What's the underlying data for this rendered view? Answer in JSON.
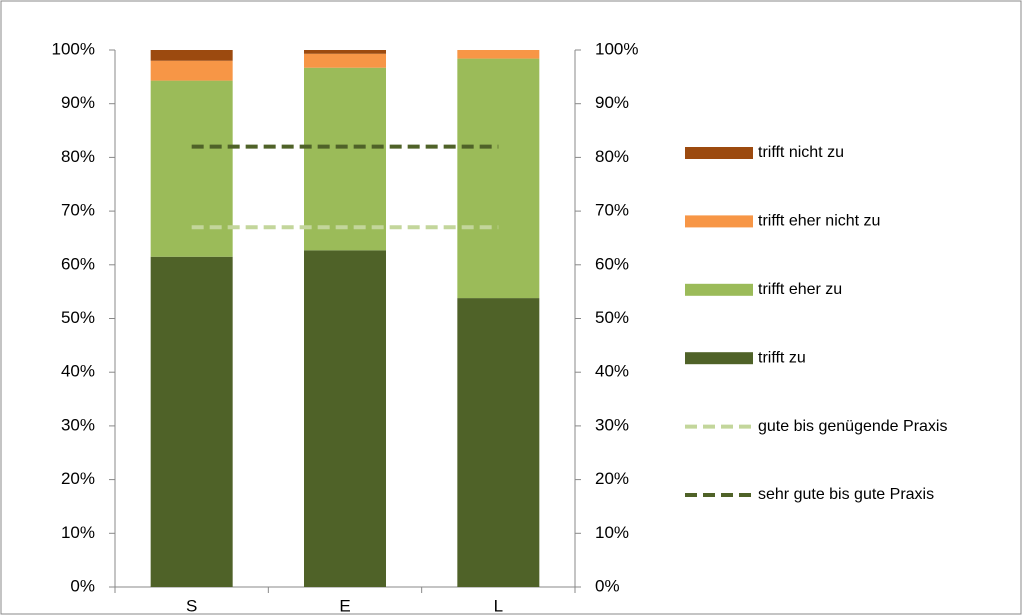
{
  "chart_data": {
    "type": "bar",
    "stacked": true,
    "categories": [
      "S",
      "E",
      "L"
    ],
    "series": [
      {
        "name": "trifft zu",
        "color": "#4f6228",
        "values": [
          61.5,
          62.7,
          53.8
        ]
      },
      {
        "name": "trifft eher zu",
        "color": "#9bbb59",
        "values": [
          32.8,
          34.0,
          44.6
        ]
      },
      {
        "name": "trifft eher nicht zu",
        "color": "#f79646",
        "values": [
          3.7,
          2.6,
          1.6
        ]
      },
      {
        "name": "trifft nicht zu",
        "color": "#9c4a0f",
        "values": [
          2.0,
          0.7,
          0
        ]
      },
      {
        "name": "gute bis genügende Praxis",
        "type": "line",
        "dashed": true,
        "color": "#c3d69b",
        "values": [
          67,
          67,
          67
        ]
      },
      {
        "name": "sehr gute bis gute Praxis",
        "type": "line",
        "dashed": true,
        "color": "#4f6228",
        "values": [
          82,
          82,
          82
        ]
      }
    ],
    "ylim": [
      0,
      100
    ],
    "yticks": [
      {
        "value": 0,
        "label": "0%"
      },
      {
        "value": 10,
        "label": "10%"
      },
      {
        "value": 20,
        "label": "20%"
      },
      {
        "value": 30,
        "label": "30%"
      },
      {
        "value": 40,
        "label": "40%"
      },
      {
        "value": 50,
        "label": "50%"
      },
      {
        "value": 60,
        "label": "60%"
      },
      {
        "value": 70,
        "label": "70%"
      },
      {
        "value": 80,
        "label": "80%"
      },
      {
        "value": 90,
        "label": "90%"
      },
      {
        "value": 100,
        "label": "100%"
      }
    ],
    "y2lim": [
      0,
      100
    ],
    "y2ticks": [
      {
        "value": 0,
        "label": "0%"
      },
      {
        "value": 10,
        "label": "10%"
      },
      {
        "value": 20,
        "label": "20%"
      },
      {
        "value": 30,
        "label": "30%"
      },
      {
        "value": 40,
        "label": "40%"
      },
      {
        "value": 50,
        "label": "50%"
      },
      {
        "value": 60,
        "label": "60%"
      },
      {
        "value": 70,
        "label": "70%"
      },
      {
        "value": 80,
        "label": "80%"
      },
      {
        "value": 90,
        "label": "90%"
      },
      {
        "value": 100,
        "label": "100%"
      }
    ],
    "grid": false,
    "legend": "right"
  }
}
